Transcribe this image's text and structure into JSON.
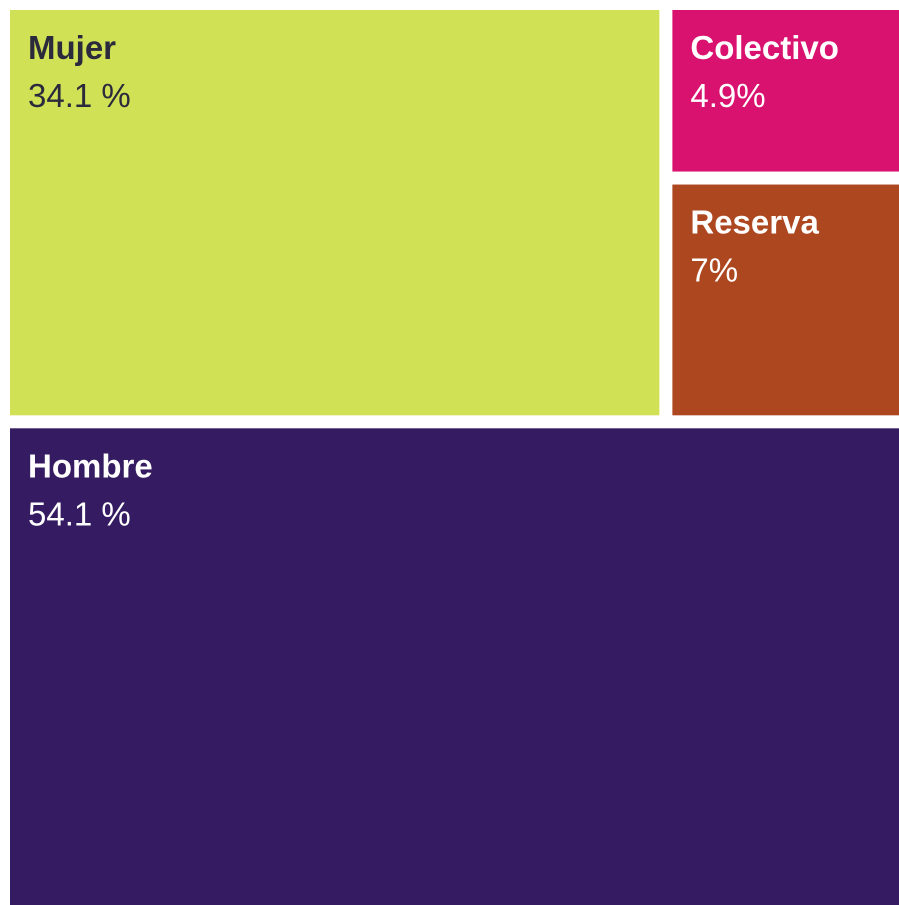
{
  "chart_data": {
    "type": "treemap",
    "categories": [
      "Mujer",
      "Colectivo",
      "Reserva",
      "Hombre"
    ],
    "values": [
      34.1,
      4.9,
      7,
      54.1
    ],
    "value_labels": [
      "34.1 %",
      "4.9%",
      "7%",
      "54.1 %"
    ],
    "colors": [
      "#d1e156",
      "#d9116f",
      "#ad4720",
      "#351b62"
    ]
  }
}
